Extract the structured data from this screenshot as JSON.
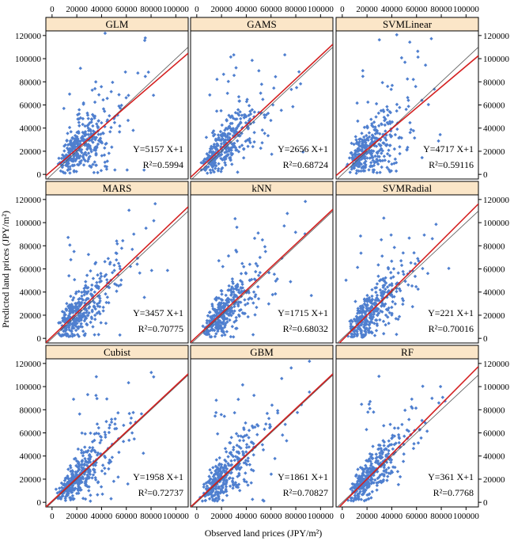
{
  "chart_data": {
    "type": "scatter",
    "layout": "3x3 facet grid",
    "xlabel": "Observed land prices (JPY/m²)",
    "ylabel": "Predicted land prices (JPY/m²)",
    "xlim": [
      -5000,
      110000
    ],
    "ylim": [
      -4000,
      124000
    ],
    "x_ticks": [
      0,
      20000,
      40000,
      60000,
      80000,
      100000
    ],
    "y_ticks": [
      0,
      20000,
      40000,
      60000,
      80000,
      100000,
      120000
    ],
    "x_tick_labels": [
      "0",
      "20000",
      "40000",
      "60000",
      "80000",
      "100000"
    ],
    "y_tick_labels": [
      "0",
      "20000",
      "40000",
      "60000",
      "80000",
      "100000",
      "120000"
    ],
    "colors": {
      "points": "#4f7fcf",
      "fit_line": "#d42020",
      "identity_line": "#555555",
      "strip": "#fbe6c8"
    },
    "panels": [
      {
        "name": "GLM",
        "equation": "Y=5157 X+1",
        "r2": "R²=0.5994",
        "slope": 0.92,
        "intercept": 3500,
        "spread": 0.42
      },
      {
        "name": "GAMS",
        "equation": "Y=2656 X+1",
        "r2": "R²=0.68724",
        "slope": 1.0,
        "intercept": 2500,
        "spread": 0.34
      },
      {
        "name": "SVMLinear",
        "equation": "Y=4717 X+1",
        "r2": "R²=0.59116",
        "slope": 0.9,
        "intercept": 3500,
        "spread": 0.42
      },
      {
        "name": "MARS",
        "equation": "Y=3457 X+1",
        "r2": "R²=0.70775",
        "slope": 1.02,
        "intercept": 1500,
        "spread": 0.33
      },
      {
        "name": "kNN",
        "equation": "Y=1715 X+1",
        "r2": "R²=0.68032",
        "slope": 1.0,
        "intercept": 1500,
        "spread": 0.34
      },
      {
        "name": "SVMRadial",
        "equation": "Y=221 X+1",
        "r2": "R²=0.70016",
        "slope": 1.07,
        "intercept": -1500,
        "spread": 0.32
      },
      {
        "name": "Cubist",
        "equation": "Y=1958 X+1",
        "r2": "R²=0.72737",
        "slope": 1.0,
        "intercept": 1000,
        "spread": 0.3
      },
      {
        "name": "GBM",
        "equation": "Y=1861 X+1",
        "r2": "R²=0.70827",
        "slope": 1.0,
        "intercept": 1000,
        "spread": 0.32
      },
      {
        "name": "RF",
        "equation": "Y=361 X+1",
        "r2": "R²=0.7768",
        "slope": 1.08,
        "intercept": -1500,
        "spread": 0.26
      }
    ]
  }
}
